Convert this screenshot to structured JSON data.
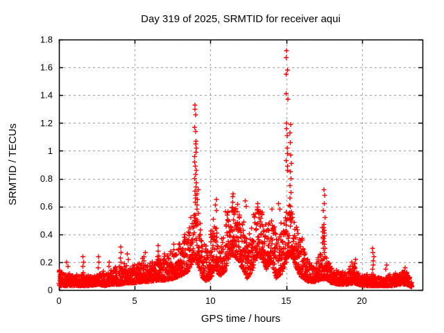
{
  "chart_data": {
    "type": "scatter",
    "title": "Day 319 of 2025, SRMTID for receiver aqui",
    "xlabel": "GPS time / hours",
    "ylabel": "SRMTID / TECUs",
    "xlim": [
      0,
      24
    ],
    "ylim": [
      0,
      1.8
    ],
    "xticks": [
      0,
      5,
      10,
      15,
      20
    ],
    "xtick_labels": [
      "0",
      "5",
      "10",
      "15",
      "20"
    ],
    "yticks": [
      0,
      0.2,
      0.4,
      0.6,
      0.8,
      1.0,
      1.2,
      1.4,
      1.6,
      1.8
    ],
    "ytick_labels": [
      "0",
      "0.2",
      "0.4",
      "0.6",
      "0.8",
      "1",
      "1.2",
      "1.4",
      "1.6",
      "1.8"
    ],
    "grid": {
      "show": true,
      "style": "dashed",
      "color": "#a8a8a8"
    },
    "legend": {
      "show": false
    },
    "background_color": "#ffffff",
    "border_color": "#000000",
    "marker": {
      "shape": "plus",
      "color": "#ff0000",
      "size": 7
    },
    "x_data_start": 0.0,
    "x_data_end": 23.3,
    "sample_step_hours": 0.008,
    "band_envelope": [
      [
        0.0,
        0.03,
        0.14
      ],
      [
        0.4,
        0.03,
        0.11
      ],
      [
        1.0,
        0.03,
        0.1
      ],
      [
        1.6,
        0.03,
        0.12
      ],
      [
        2.0,
        0.03,
        0.1
      ],
      [
        2.6,
        0.04,
        0.12
      ],
      [
        3.0,
        0.03,
        0.12
      ],
      [
        3.5,
        0.04,
        0.13
      ],
      [
        4.0,
        0.04,
        0.16
      ],
      [
        4.5,
        0.05,
        0.17
      ],
      [
        5.0,
        0.05,
        0.16
      ],
      [
        5.5,
        0.06,
        0.2
      ],
      [
        6.0,
        0.06,
        0.18
      ],
      [
        6.5,
        0.07,
        0.22
      ],
      [
        7.0,
        0.07,
        0.22
      ],
      [
        7.5,
        0.08,
        0.28
      ],
      [
        8.0,
        0.1,
        0.3
      ],
      [
        8.5,
        0.13,
        0.42
      ],
      [
        8.9,
        0.22,
        0.6
      ],
      [
        9.1,
        0.2,
        0.58
      ],
      [
        9.5,
        0.08,
        0.33
      ],
      [
        9.8,
        0.06,
        0.28
      ],
      [
        10.1,
        0.1,
        0.42
      ],
      [
        10.35,
        0.18,
        0.58
      ],
      [
        10.6,
        0.1,
        0.32
      ],
      [
        10.9,
        0.12,
        0.45
      ],
      [
        11.2,
        0.22,
        0.6
      ],
      [
        11.5,
        0.25,
        0.64
      ],
      [
        11.8,
        0.22,
        0.58
      ],
      [
        12.1,
        0.15,
        0.5
      ],
      [
        12.45,
        0.08,
        0.35
      ],
      [
        12.8,
        0.15,
        0.55
      ],
      [
        13.1,
        0.25,
        0.6
      ],
      [
        13.4,
        0.22,
        0.55
      ],
      [
        13.7,
        0.15,
        0.48
      ],
      [
        14.0,
        0.2,
        0.55
      ],
      [
        14.35,
        0.08,
        0.4
      ],
      [
        14.7,
        0.12,
        0.45
      ],
      [
        15.0,
        0.2,
        0.55
      ],
      [
        15.2,
        0.25,
        0.62
      ],
      [
        15.5,
        0.22,
        0.55
      ],
      [
        15.8,
        0.12,
        0.4
      ],
      [
        16.1,
        0.08,
        0.32
      ],
      [
        16.5,
        0.06,
        0.2
      ],
      [
        17.0,
        0.06,
        0.18
      ],
      [
        17.35,
        0.08,
        0.3
      ],
      [
        17.6,
        0.08,
        0.25
      ],
      [
        18.0,
        0.05,
        0.15
      ],
      [
        18.5,
        0.04,
        0.12
      ],
      [
        19.0,
        0.04,
        0.13
      ],
      [
        19.5,
        0.05,
        0.16
      ],
      [
        20.0,
        0.03,
        0.1
      ],
      [
        20.5,
        0.03,
        0.11
      ],
      [
        21.0,
        0.03,
        0.09
      ],
      [
        21.5,
        0.03,
        0.09
      ],
      [
        22.0,
        0.03,
        0.1
      ],
      [
        22.5,
        0.04,
        0.12
      ],
      [
        22.9,
        0.04,
        0.14
      ],
      [
        23.1,
        0.03,
        0.09
      ],
      [
        23.3,
        0.02,
        0.07
      ]
    ],
    "spike_columns": [
      {
        "x": 0.55,
        "ys": [
          0.2,
          0.17
        ]
      },
      {
        "x": 1.6,
        "ys": [
          0.24,
          0.2,
          0.17
        ]
      },
      {
        "x": 2.6,
        "ys": [
          0.24,
          0.2,
          0.16
        ]
      },
      {
        "x": 3.3,
        "ys": [
          0.2,
          0.17
        ]
      },
      {
        "x": 4.1,
        "ys": [
          0.31,
          0.27,
          0.23,
          0.2
        ]
      },
      {
        "x": 4.55,
        "ys": [
          0.26,
          0.22
        ]
      },
      {
        "x": 5.65,
        "ys": [
          0.27,
          0.24,
          0.21
        ]
      },
      {
        "x": 6.55,
        "ys": [
          0.32,
          0.28,
          0.24,
          0.2
        ]
      },
      {
        "x": 7.0,
        "ys": [
          0.26,
          0.22
        ]
      },
      {
        "x": 7.55,
        "ys": [
          0.33,
          0.29,
          0.25
        ]
      },
      {
        "x": 8.3,
        "ys": [
          0.38,
          0.34
        ]
      },
      {
        "x": 9.0,
        "ys": [
          1.33,
          1.3,
          1.26,
          1.17,
          1.14,
          1.07,
          1.05,
          1.02,
          0.99,
          0.96,
          0.92,
          0.89,
          0.86,
          0.83,
          0.8,
          0.77,
          0.74,
          0.71,
          0.68,
          0.66,
          0.63
        ]
      },
      {
        "x": 9.15,
        "ys": [
          0.72,
          0.69,
          0.65,
          0.61,
          0.58,
          0.55
        ]
      },
      {
        "x": 10.35,
        "ys": [
          0.65,
          0.61,
          0.57
        ]
      },
      {
        "x": 11.5,
        "ys": [
          0.67,
          0.63
        ]
      },
      {
        "x": 12.35,
        "ys": [
          0.64,
          0.6
        ]
      },
      {
        "x": 13.15,
        "ys": [
          0.62,
          0.58
        ]
      },
      {
        "x": 14.55,
        "ys": [
          0.62,
          0.58
        ]
      },
      {
        "x": 15.05,
        "ys": [
          1.72,
          1.67,
          1.58,
          1.55,
          1.41,
          1.37,
          1.2,
          1.16,
          1.11,
          1.02,
          0.98,
          0.93,
          0.89,
          0.86
        ]
      },
      {
        "x": 15.3,
        "ys": [
          1.19,
          1.13,
          1.06,
          0.97,
          0.91,
          0.85,
          0.8,
          0.75,
          0.7,
          0.66
        ]
      },
      {
        "x": 17.42,
        "ys": [
          0.45,
          0.42,
          0.38,
          0.34,
          0.3
        ]
      },
      {
        "x": 17.5,
        "ys": [
          0.72,
          0.68,
          0.62,
          0.57,
          0.52,
          0.47,
          0.45,
          0.43,
          0.41,
          0.39,
          0.37,
          0.35,
          0.33,
          0.3,
          0.27
        ]
      },
      {
        "x": 19.3,
        "ys": [
          0.2,
          0.17,
          0.14
        ]
      },
      {
        "x": 19.55,
        "ys": [
          0.22,
          0.19,
          0.16
        ]
      },
      {
        "x": 20.75,
        "ys": [
          0.3,
          0.27,
          0.24,
          0.21,
          0.18,
          0.15
        ]
      },
      {
        "x": 21.6,
        "ys": [
          0.18,
          0.15
        ]
      },
      {
        "x": 22.8,
        "ys": [
          0.16,
          0.13
        ]
      }
    ]
  }
}
